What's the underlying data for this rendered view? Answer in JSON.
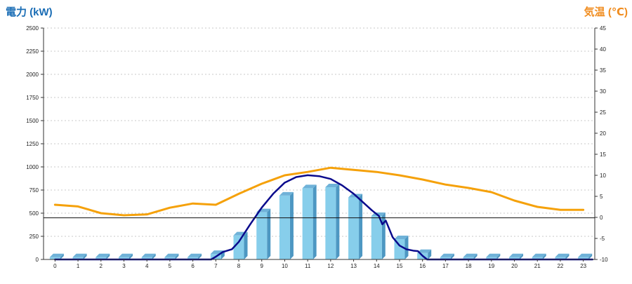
{
  "chart_data": {
    "type": "bar-line-combo",
    "y_left": {
      "label": "電力 (kW)",
      "min": 0,
      "max": 2500,
      "ticks": [
        0,
        250,
        500,
        750,
        1000,
        1250,
        1500,
        1750,
        2000,
        2250,
        2500
      ],
      "color": "#1a6db5"
    },
    "y_right": {
      "label": "気温 (℃)",
      "min": -10,
      "max": 45,
      "ticks": [
        -10,
        -5,
        0,
        5,
        10,
        15,
        20,
        25,
        30,
        35,
        40,
        45
      ],
      "color": "#f08c1e"
    },
    "categories": [
      "0",
      "1",
      "2",
      "3",
      "4",
      "5",
      "6",
      "7",
      "8",
      "9",
      "10",
      "11",
      "12",
      "13",
      "14",
      "15",
      "16",
      "17",
      "18",
      "19",
      "20",
      "21",
      "22",
      "23"
    ],
    "reference_line_power": 450,
    "series": [
      {
        "kind": "bars",
        "axis": "left",
        "color": "#87ceeb",
        "values": [
          25,
          25,
          25,
          25,
          25,
          25,
          25,
          60,
          260,
          510,
          690,
          770,
          780,
          670,
          470,
          220,
          70,
          25,
          25,
          25,
          25,
          25,
          25,
          25
        ]
      },
      {
        "kind": "line",
        "axis": "right",
        "color": "#f5a10a",
        "values": [
          3.0,
          2.6,
          1.0,
          0.5,
          0.7,
          2.3,
          3.3,
          3.0,
          5.6,
          8.0,
          10.0,
          10.8,
          11.8,
          11.3,
          10.8,
          10.0,
          9.0,
          7.8,
          7.0,
          6.0,
          4.0,
          2.5,
          1.8,
          1.8
        ]
      },
      {
        "kind": "line",
        "axis": "left",
        "color": "#0a0a8c",
        "x": [
          0,
          6.8,
          7.0,
          7.3,
          7.7,
          8.0,
          8.5,
          9.0,
          9.5,
          10.0,
          10.5,
          11.0,
          11.5,
          12.0,
          12.5,
          13.0,
          13.4,
          13.8,
          14.1,
          14.25,
          14.4,
          14.7,
          15.0,
          15.3,
          15.6,
          15.8,
          16.0,
          16.2,
          23.4
        ],
        "values": [
          0,
          0,
          30,
          80,
          110,
          190,
          380,
          560,
          710,
          830,
          890,
          910,
          900,
          870,
          800,
          710,
          620,
          530,
          470,
          380,
          420,
          240,
          150,
          110,
          95,
          90,
          40,
          0,
          0
        ]
      }
    ]
  }
}
